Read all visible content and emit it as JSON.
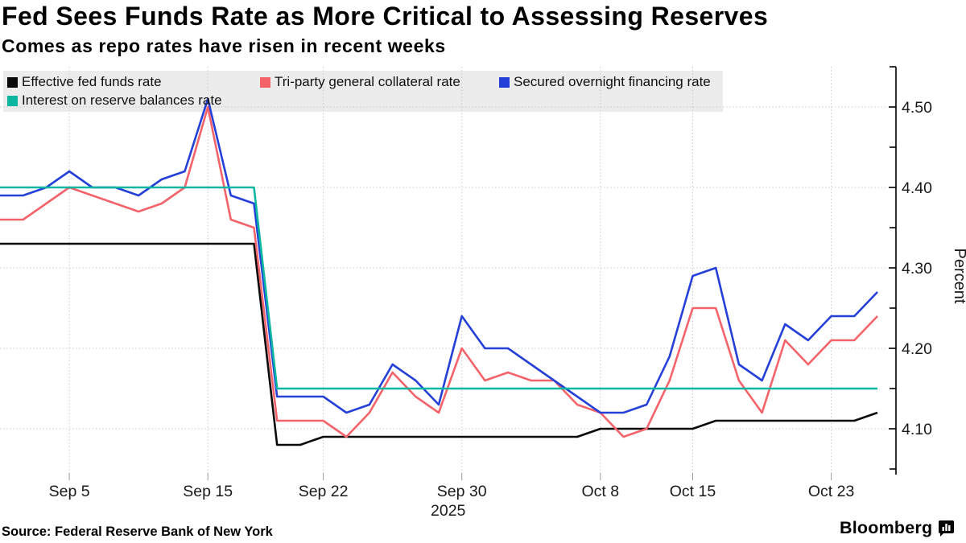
{
  "title": "Fed Sees Funds Rate as More Critical to Assessing Reserves",
  "subtitle": "Comes as repo rates have risen in recent weeks",
  "source": "Source: Federal Reserve Bank of New York",
  "branding": {
    "logo_text": "Bloomberg",
    "logo_icon": "bar-chart-bubble-icon"
  },
  "chart_data": {
    "type": "line",
    "title": "Fed Sees Funds Rate as More Critical to Assessing Reserves",
    "subtitle": "Comes as repo rates have risen in recent weeks",
    "xlabel": "",
    "ylabel": "Percent",
    "x_year_label": "2025",
    "ylim": [
      4.05,
      4.55
    ],
    "y_major_ticks": [
      4.5,
      4.4,
      4.3,
      4.2,
      4.1
    ],
    "y_minor_ticks": [
      4.55,
      4.45,
      4.35,
      4.25,
      4.15,
      4.05
    ],
    "grid": "dotted, both axes",
    "legend_position": "top-left, two rows, gray background",
    "x": [
      "Sep 2",
      "Sep 3",
      "Sep 4",
      "Sep 5",
      "Sep 8",
      "Sep 9",
      "Sep 10",
      "Sep 11",
      "Sep 12",
      "Sep 15",
      "Sep 16",
      "Sep 17",
      "Sep 18",
      "Sep 19",
      "Sep 22",
      "Sep 23",
      "Sep 24",
      "Sep 25",
      "Sep 26",
      "Sep 29",
      "Sep 30",
      "Oct 1",
      "Oct 2",
      "Oct 3",
      "Oct 6",
      "Oct 7",
      "Oct 8",
      "Oct 9",
      "Oct 10",
      "Oct 14",
      "Oct 15",
      "Oct 16",
      "Oct 17",
      "Oct 20",
      "Oct 21",
      "Oct 22",
      "Oct 23",
      "Oct 24",
      "Oct 27"
    ],
    "x_ticks": [
      {
        "index": 3,
        "label": "Sep 5"
      },
      {
        "index": 9,
        "label": "Sep 15"
      },
      {
        "index": 14,
        "label": "Sep 22"
      },
      {
        "index": 20,
        "label": "Sep 30",
        "year": "2025"
      },
      {
        "index": 26,
        "label": "Oct 8"
      },
      {
        "index": 30,
        "label": "Oct 15"
      },
      {
        "index": 36,
        "label": "Oct 23"
      }
    ],
    "series": [
      {
        "name": "Effective fed funds rate",
        "slug": "effective-fed-funds-rate",
        "color": "#0a0a0a",
        "values": [
          4.33,
          4.33,
          4.33,
          4.33,
          4.33,
          4.33,
          4.33,
          4.33,
          4.33,
          4.33,
          4.33,
          4.33,
          4.08,
          4.08,
          4.09,
          4.09,
          4.09,
          4.09,
          4.09,
          4.09,
          4.09,
          4.09,
          4.09,
          4.09,
          4.09,
          4.09,
          4.1,
          4.1,
          4.1,
          4.1,
          4.1,
          4.11,
          4.11,
          4.11,
          4.11,
          4.11,
          4.11,
          4.11,
          4.12
        ]
      },
      {
        "name": "Tri-party general collateral rate",
        "slug": "tri-party-general-collateral-rate",
        "color": "#f4636a",
        "values": [
          4.36,
          4.36,
          4.38,
          4.4,
          4.39,
          4.38,
          4.37,
          4.38,
          4.4,
          4.5,
          4.36,
          4.35,
          4.11,
          4.11,
          4.11,
          4.09,
          4.12,
          4.17,
          4.14,
          4.12,
          4.2,
          4.16,
          4.17,
          4.16,
          4.16,
          4.13,
          4.12,
          4.09,
          4.1,
          4.16,
          4.25,
          4.25,
          4.16,
          4.12,
          4.21,
          4.18,
          4.21,
          4.21,
          4.24
        ]
      },
      {
        "name": "Secured overnight financing rate",
        "slug": "secured-overnight-financing-rate",
        "color": "#2440d8",
        "values": [
          4.39,
          4.39,
          4.4,
          4.42,
          4.4,
          4.4,
          4.39,
          4.41,
          4.42,
          4.51,
          4.39,
          4.38,
          4.14,
          4.14,
          4.14,
          4.12,
          4.13,
          4.18,
          4.16,
          4.13,
          4.24,
          4.2,
          4.2,
          4.18,
          4.16,
          4.14,
          4.12,
          4.12,
          4.13,
          4.19,
          4.29,
          4.3,
          4.18,
          4.16,
          4.23,
          4.21,
          4.24,
          4.24,
          4.27
        ]
      },
      {
        "name": "Interest on reserve balances rate",
        "slug": "interest-on-reserve-balances-rate",
        "color": "#0cb7a2",
        "values": [
          4.4,
          4.4,
          4.4,
          4.4,
          4.4,
          4.4,
          4.4,
          4.4,
          4.4,
          4.4,
          4.4,
          4.4,
          4.15,
          4.15,
          4.15,
          4.15,
          4.15,
          4.15,
          4.15,
          4.15,
          4.15,
          4.15,
          4.15,
          4.15,
          4.15,
          4.15,
          4.15,
          4.15,
          4.15,
          4.15,
          4.15,
          4.15,
          4.15,
          4.15,
          4.15,
          4.15,
          4.15,
          4.15,
          4.15
        ]
      }
    ]
  }
}
